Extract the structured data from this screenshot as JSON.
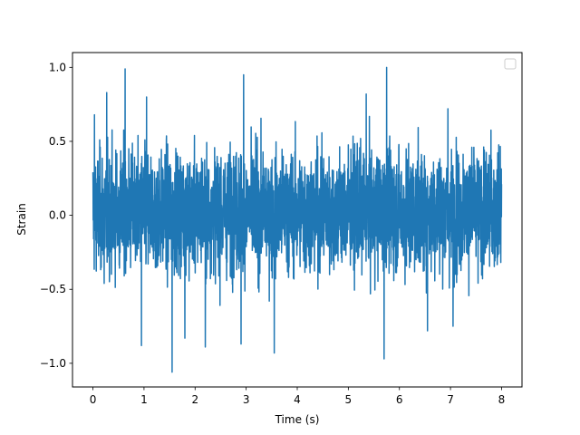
{
  "chart_data": {
    "type": "line",
    "xlabel": "Time (s)",
    "ylabel": "Strain",
    "xlim": [
      -0.4,
      8.4
    ],
    "ylim": [
      -1.16,
      1.1
    ],
    "x_ticks": [
      0,
      1,
      2,
      3,
      4,
      5,
      6,
      7,
      8
    ],
    "y_ticks": [
      -1.0,
      -0.5,
      0.0,
      0.5,
      1.0
    ],
    "x_tick_labels": [
      "0",
      "1",
      "2",
      "3",
      "4",
      "5",
      "6",
      "7",
      "8"
    ],
    "y_tick_labels": [
      "−1.0",
      "−0.5",
      "0.0",
      "0.5",
      "1.0"
    ],
    "grid": false,
    "legend": {
      "placement": "top-right",
      "entries": []
    },
    "series": [
      {
        "color": "#1f77b4",
        "x_range": [
          0,
          8
        ],
        "notable_points": [
          {
            "x": 0.03,
            "y": 0.68
          },
          {
            "x": 0.27,
            "y": 0.83
          },
          {
            "x": 0.63,
            "y": 0.99
          },
          {
            "x": 1.05,
            "y": 0.8
          },
          {
            "x": 2.95,
            "y": 0.95
          },
          {
            "x": 5.35,
            "y": 0.82
          },
          {
            "x": 5.75,
            "y": 1.0
          },
          {
            "x": 6.95,
            "y": 0.72
          },
          {
            "x": 0.22,
            "y": -0.46
          },
          {
            "x": 0.95,
            "y": -0.88
          },
          {
            "x": 1.55,
            "y": -1.06
          },
          {
            "x": 1.8,
            "y": -0.83
          },
          {
            "x": 2.2,
            "y": -0.89
          },
          {
            "x": 2.9,
            "y": -0.87
          },
          {
            "x": 3.55,
            "y": -0.93
          },
          {
            "x": 5.7,
            "y": -0.97
          },
          {
            "x": 6.55,
            "y": -0.78
          },
          {
            "x": 7.05,
            "y": -0.75
          }
        ],
        "envelope": {
          "typical_upper": 0.5,
          "typical_lower": -0.45
        }
      }
    ]
  }
}
